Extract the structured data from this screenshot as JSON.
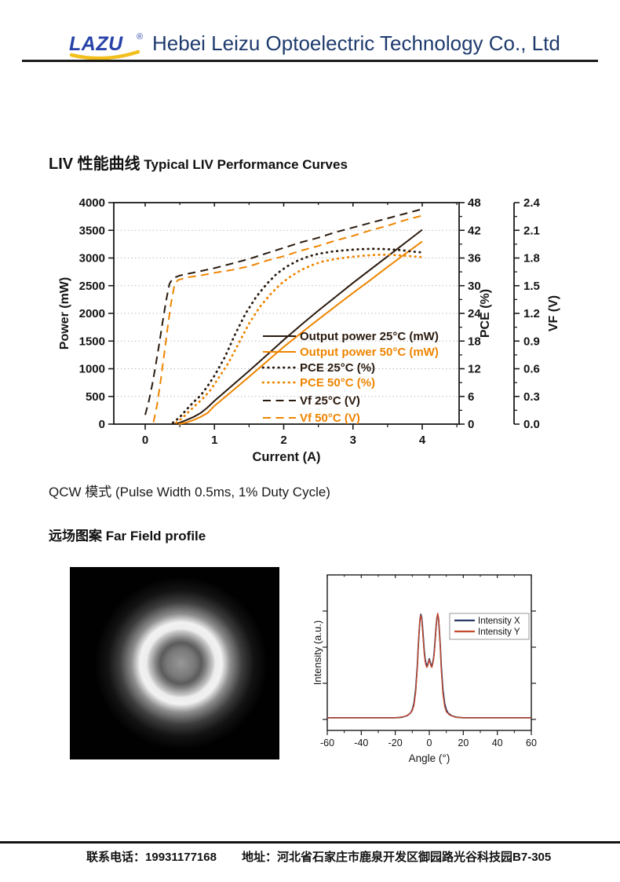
{
  "header": {
    "logo_text": "LAZU",
    "logo_reg": "®",
    "company_name": "Hebei Leizu Optoelectric Technology Co., Ltd",
    "brand_navy": "#1e3a6d",
    "logo_blue": "#2843a8",
    "logo_gold": "#f2c01e"
  },
  "liv_section": {
    "title_zh": "LIV 性能曲线",
    "title_en": " Typical LIV Performance Curves"
  },
  "qcw_note": {
    "zh": "QCW 模式",
    "en": "  (Pulse Width 0.5ms, 1% Duty Cycle)"
  },
  "farfield_section": {
    "title": "远场图案 Far Field profile"
  },
  "footer": {
    "phone_label": "联系电话：",
    "phone": "19931177168",
    "address_label": "地址：",
    "address": "河北省石家庄市鹿泉开发区御园路光谷科技园B7-305"
  },
  "chart_data": [
    {
      "type": "line",
      "title": "Typical LIV Performance Curves",
      "xlabel": "Current (A)",
      "xlim": [
        -0.45,
        4.53
      ],
      "x_ticks": [
        0,
        1,
        2,
        3,
        4
      ],
      "x_minor_ticks": [
        0.5,
        1.5,
        2.5,
        3.5,
        4.5
      ],
      "grid": "horizontal-dotted",
      "grid_color": "#bdbdbd",
      "legend_position": "inside-lower-right",
      "axes": {
        "power": {
          "label": "Power (mW)",
          "lim": [
            0,
            4000
          ],
          "ticks": [
            0,
            500,
            1000,
            1500,
            2000,
            2500,
            3000,
            3500,
            4000
          ]
        },
        "pce": {
          "label": "PCE (%)",
          "lim": [
            0,
            48
          ],
          "ticks": [
            0,
            6,
            12,
            18,
            24,
            30,
            36,
            42,
            48
          ],
          "minor": [
            3,
            9,
            15,
            21,
            27,
            33,
            39,
            45
          ]
        },
        "vf": {
          "label": "VF (V)",
          "lim": [
            0,
            2.4
          ],
          "ticks": [
            0.0,
            0.3,
            0.6,
            0.9,
            1.2,
            1.5,
            1.8,
            2.1,
            2.4
          ],
          "minor": [
            0.15,
            0.45,
            0.75,
            1.05,
            1.35,
            1.65,
            1.95,
            2.25
          ]
        }
      },
      "series": [
        {
          "name": "Output power 25°C (mW)",
          "axis": "power",
          "style": "solid",
          "color": "#2a1a0e",
          "points": [
            [
              0.42,
              0
            ],
            [
              0.5,
              25
            ],
            [
              0.6,
              75
            ],
            [
              0.7,
              130
            ],
            [
              0.8,
              200
            ],
            [
              0.9,
              300
            ],
            [
              1,
              420
            ],
            [
              1.25,
              690
            ],
            [
              1.5,
              960
            ],
            [
              1.75,
              1240
            ],
            [
              2,
              1520
            ],
            [
              2.25,
              1790
            ],
            [
              2.5,
              2050
            ],
            [
              2.75,
              2300
            ],
            [
              3,
              2550
            ],
            [
              3.25,
              2790
            ],
            [
              3.5,
              3030
            ],
            [
              3.75,
              3270
            ],
            [
              4,
              3510
            ]
          ]
        },
        {
          "name": "Output power 50°C (mW)",
          "axis": "power",
          "style": "solid",
          "color": "#ee8500",
          "points": [
            [
              0.48,
              0
            ],
            [
              0.6,
              30
            ],
            [
              0.7,
              75
            ],
            [
              0.8,
              130
            ],
            [
              0.9,
              200
            ],
            [
              1,
              330
            ],
            [
              1.25,
              590
            ],
            [
              1.5,
              855
            ],
            [
              1.75,
              1125
            ],
            [
              2,
              1395
            ],
            [
              2.25,
              1645
            ],
            [
              2.5,
              1890
            ],
            [
              2.75,
              2130
            ],
            [
              3,
              2370
            ],
            [
              3.25,
              2600
            ],
            [
              3.5,
              2840
            ],
            [
              3.75,
              3070
            ],
            [
              4,
              3300
            ]
          ]
        },
        {
          "name": "PCE 25°C (%)",
          "axis": "pce",
          "style": "dotted",
          "color": "#2a1a0e",
          "points": [
            [
              0.4,
              0.3
            ],
            [
              0.5,
              1.5
            ],
            [
              0.6,
              3.2
            ],
            [
              0.7,
              4.8
            ],
            [
              0.8,
              6.2
            ],
            [
              0.9,
              8.2
            ],
            [
              1,
              10.5
            ],
            [
              1.15,
              14.5
            ],
            [
              1.3,
              19.5
            ],
            [
              1.45,
              24
            ],
            [
              1.6,
              27.5
            ],
            [
              1.75,
              30.3
            ],
            [
              1.9,
              32.6
            ],
            [
              2.05,
              34.2
            ],
            [
              2.2,
              35.4
            ],
            [
              2.35,
              36.3
            ],
            [
              2.5,
              36.9
            ],
            [
              2.7,
              37.4
            ],
            [
              2.9,
              37.7
            ],
            [
              3.1,
              37.9
            ],
            [
              3.3,
              38
            ],
            [
              3.5,
              37.9
            ],
            [
              3.7,
              37.7
            ],
            [
              3.85,
              37.4
            ],
            [
              4,
              37.2
            ]
          ]
        },
        {
          "name": "PCE 50°C (%)",
          "axis": "pce",
          "style": "dotted",
          "color": "#ee8500",
          "points": [
            [
              0.45,
              0.3
            ],
            [
              0.55,
              1.5
            ],
            [
              0.65,
              3
            ],
            [
              0.75,
              4.4
            ],
            [
              0.85,
              5.8
            ],
            [
              0.95,
              7.5
            ],
            [
              1.05,
              9.8
            ],
            [
              1.2,
              13.2
            ],
            [
              1.35,
              17.5
            ],
            [
              1.5,
              21.8
            ],
            [
              1.65,
              25.3
            ],
            [
              1.8,
              28
            ],
            [
              1.95,
              30.3
            ],
            [
              2.1,
              32
            ],
            [
              2.25,
              33.4
            ],
            [
              2.4,
              34.4
            ],
            [
              2.55,
              35.2
            ],
            [
              2.75,
              35.8
            ],
            [
              2.95,
              36.2
            ],
            [
              3.15,
              36.5
            ],
            [
              3.35,
              36.7
            ],
            [
              3.55,
              36.7
            ],
            [
              3.75,
              36.5
            ],
            [
              4,
              36.2
            ]
          ]
        },
        {
          "name": "Vf 25°C (V)",
          "axis": "vf",
          "style": "dashed",
          "color": "#2a1a0e",
          "points": [
            [
              0,
              0.1
            ],
            [
              0.05,
              0.24
            ],
            [
              0.1,
              0.42
            ],
            [
              0.15,
              0.63
            ],
            [
              0.2,
              0.86
            ],
            [
              0.25,
              1.1
            ],
            [
              0.3,
              1.33
            ],
            [
              0.35,
              1.52
            ],
            [
              0.4,
              1.58
            ],
            [
              0.5,
              1.61
            ],
            [
              0.75,
              1.65
            ],
            [
              1,
              1.69
            ],
            [
              1.25,
              1.74
            ],
            [
              1.5,
              1.79
            ],
            [
              1.75,
              1.85
            ],
            [
              2,
              1.91
            ],
            [
              2.25,
              1.97
            ],
            [
              2.5,
              2.02
            ],
            [
              2.75,
              2.08
            ],
            [
              3,
              2.13
            ],
            [
              3.25,
              2.18
            ],
            [
              3.5,
              2.23
            ],
            [
              3.75,
              2.28
            ],
            [
              4,
              2.33
            ]
          ]
        },
        {
          "name": "Vf 50°C (V)",
          "axis": "vf",
          "style": "dashed",
          "color": "#ee8500",
          "points": [
            [
              0.12,
              0.02
            ],
            [
              0.17,
              0.2
            ],
            [
              0.22,
              0.45
            ],
            [
              0.27,
              0.73
            ],
            [
              0.32,
              1.02
            ],
            [
              0.37,
              1.3
            ],
            [
              0.42,
              1.5
            ],
            [
              0.47,
              1.56
            ],
            [
              0.6,
              1.59
            ],
            [
              0.8,
              1.61
            ],
            [
              1,
              1.64
            ],
            [
              1.25,
              1.67
            ],
            [
              1.5,
              1.71
            ],
            [
              1.75,
              1.77
            ],
            [
              2,
              1.82
            ],
            [
              2.25,
              1.88
            ],
            [
              2.5,
              1.93
            ],
            [
              2.75,
              1.99
            ],
            [
              3,
              2.04
            ],
            [
              3.25,
              2.1
            ],
            [
              3.5,
              2.15
            ],
            [
              3.75,
              2.21
            ],
            [
              4,
              2.26
            ]
          ]
        }
      ]
    },
    {
      "type": "line",
      "xlabel": "Angle (°)",
      "ylabel": "Intensity (a.u.)",
      "xlim": [
        -60,
        60
      ],
      "x_ticks": [
        -60,
        -40,
        -20,
        0,
        20,
        40,
        60
      ],
      "x_minor_ticks": [
        -50,
        -30,
        -10,
        10,
        30,
        50
      ],
      "ylim": [
        0,
        1
      ],
      "legend_position": "inside-top-right",
      "series": [
        {
          "name": "Intensity X",
          "color": "#2c3a68",
          "points": [
            [
              -60,
              0.015
            ],
            [
              -20,
              0.015
            ],
            [
              -16,
              0.02
            ],
            [
              -13,
              0.035
            ],
            [
              -11,
              0.06
            ],
            [
              -10,
              0.09
            ],
            [
              -9,
              0.15
            ],
            [
              -8,
              0.28
            ],
            [
              -7,
              0.5
            ],
            [
              -6.5,
              0.67
            ],
            [
              -6,
              0.8
            ],
            [
              -5.5,
              0.92
            ],
            [
              -5,
              0.97
            ],
            [
              -4.5,
              0.94
            ],
            [
              -4,
              0.86
            ],
            [
              -3.5,
              0.75
            ],
            [
              -3,
              0.64
            ],
            [
              -2.5,
              0.56
            ],
            [
              -2,
              0.52
            ],
            [
              -1.5,
              0.5
            ],
            [
              -1,
              0.5
            ],
            [
              -0.5,
              0.53
            ],
            [
              0,
              0.56
            ],
            [
              0.5,
              0.53
            ],
            [
              1,
              0.5
            ],
            [
              1.5,
              0.5
            ],
            [
              2,
              0.52
            ],
            [
              2.5,
              0.56
            ],
            [
              3,
              0.64
            ],
            [
              3.5,
              0.75
            ],
            [
              4,
              0.86
            ],
            [
              4.5,
              0.94
            ],
            [
              5,
              0.97
            ],
            [
              5.5,
              0.92
            ],
            [
              6,
              0.8
            ],
            [
              6.5,
              0.67
            ],
            [
              7,
              0.5
            ],
            [
              8,
              0.28
            ],
            [
              9,
              0.15
            ],
            [
              10,
              0.09
            ],
            [
              11,
              0.06
            ],
            [
              13,
              0.035
            ],
            [
              16,
              0.02
            ],
            [
              20,
              0.015
            ],
            [
              60,
              0.015
            ]
          ]
        },
        {
          "name": "Intensity Y",
          "color": "#c44b2e",
          "points": [
            [
              -60,
              0.015
            ],
            [
              -20,
              0.015
            ],
            [
              -15,
              0.025
            ],
            [
              -12,
              0.045
            ],
            [
              -10,
              0.08
            ],
            [
              -9,
              0.13
            ],
            [
              -8,
              0.25
            ],
            [
              -7,
              0.48
            ],
            [
              -6.5,
              0.66
            ],
            [
              -6,
              0.82
            ],
            [
              -5.5,
              0.93
            ],
            [
              -5,
              0.96
            ],
            [
              -4.5,
              0.92
            ],
            [
              -4,
              0.83
            ],
            [
              -3.5,
              0.72
            ],
            [
              -3,
              0.61
            ],
            [
              -2.5,
              0.54
            ],
            [
              -2,
              0.5
            ],
            [
              -1.5,
              0.48
            ],
            [
              -1,
              0.49
            ],
            [
              -0.5,
              0.52
            ],
            [
              0,
              0.55
            ],
            [
              0.5,
              0.52
            ],
            [
              1,
              0.49
            ],
            [
              1.5,
              0.48
            ],
            [
              2,
              0.51
            ],
            [
              2.5,
              0.55
            ],
            [
              3,
              0.62
            ],
            [
              3.5,
              0.73
            ],
            [
              4,
              0.85
            ],
            [
              4.6,
              0.95
            ],
            [
              5,
              0.98
            ],
            [
              5.5,
              0.93
            ],
            [
              6,
              0.81
            ],
            [
              6.5,
              0.65
            ],
            [
              7,
              0.46
            ],
            [
              8,
              0.24
            ],
            [
              9,
              0.12
            ],
            [
              10,
              0.07
            ],
            [
              12,
              0.04
            ],
            [
              15,
              0.022
            ],
            [
              20,
              0.015
            ],
            [
              60,
              0.015
            ]
          ]
        }
      ]
    }
  ]
}
